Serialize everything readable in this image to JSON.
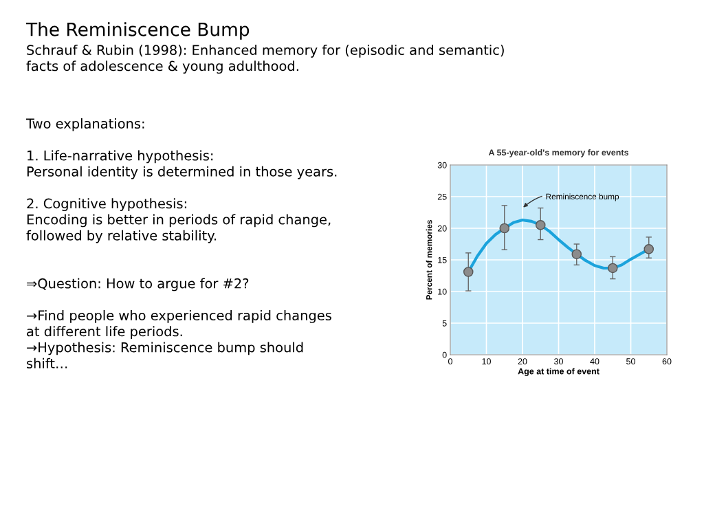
{
  "chart_data": [
    {
      "type": "other",
      "title": "The Reminiscence Bump",
      "subtitle": "Schrauf & Rubin (1998): Enhanced memory for (episodic and semantic)\nfacts of adolescence & young adulthood.",
      "annotations": [
        "Two explanations:\n\n1. Life-narrative hypothesis:\nPersonal identity is determined in those years.\n\n2. Cognitive hypothesis:\nEncoding is better in periods of rapid change,\nfollowed by relative stability.\n\n\n⇒Question: How to argue for #2?\n\n→Find people who experienced rapid changes\nat different life periods.\n→Hypothesis: Reminiscence bump should\nshift…"
      ]
    },
    {
      "type": "scatter",
      "title": "A 55-year-old's memory for events",
      "xlabel": "Age at time of event",
      "ylabel": "Percent of memories",
      "xlim": [
        0,
        60
      ],
      "xticks": [
        0,
        10,
        20,
        30,
        40,
        50,
        60
      ],
      "ylim": [
        0,
        30
      ],
      "yticks": [
        0,
        5,
        10,
        15,
        20,
        25,
        30
      ],
      "grid": true,
      "series": [
        {
          "type": "line",
          "color": "#1ba3dc",
          "x": [
            5,
            7.5,
            10,
            12.5,
            15,
            17.5,
            20,
            22.5,
            25,
            27.5,
            30,
            32.5,
            35,
            37.5,
            40,
            42.5,
            45,
            47.5,
            50,
            52.5,
            55
          ],
          "values": [
            13.1,
            15.6,
            17.6,
            19.0,
            20.0,
            20.9,
            21.3,
            21.1,
            20.5,
            19.5,
            18.2,
            17.0,
            15.9,
            14.9,
            14.1,
            13.7,
            13.7,
            14.2,
            15.1,
            15.9,
            16.7
          ]
        },
        {
          "type": "scatter",
          "color": "#8c8c8c",
          "marker": "circle",
          "x": [
            5,
            15,
            25,
            35,
            45,
            55
          ],
          "values": [
            13.1,
            20.0,
            20.5,
            15.9,
            13.7,
            16.7
          ],
          "errors": [
            [
              10.1,
              16.1
            ],
            [
              16.6,
              23.6
            ],
            [
              18.2,
              23.2
            ],
            [
              14.2,
              17.5
            ],
            [
              12.0,
              15.5
            ],
            [
              15.3,
              18.6
            ]
          ]
        }
      ],
      "annotations": [
        "Reminiscence bump"
      ]
    }
  ]
}
